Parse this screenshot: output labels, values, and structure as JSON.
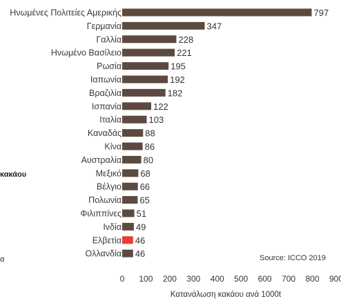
{
  "chart_data": {
    "type": "bar",
    "orientation": "horizontal",
    "categories": [
      "Ηνωμένες Πολιτείες Αμερικής",
      "Γερμανία",
      "Γαλλία",
      "Ηνωμένο Βασίλειο",
      "Ρωσία",
      "Ιαπωνία",
      "Βραζιλία",
      "Ισπανία",
      "Ιταλία",
      "Καναδάς",
      "Κίνα",
      "Αυστραλία",
      "Μεξικό",
      "Βέλγιο",
      "Πολωνία",
      "Φιλιππίνες",
      "Ινδία",
      "Ελβετία",
      "Ολλανδία"
    ],
    "values": [
      797,
      347,
      228,
      221,
      195,
      192,
      182,
      122,
      103,
      88,
      86,
      80,
      68,
      66,
      65,
      51,
      49,
      46,
      46
    ],
    "value_labels": [
      "797",
      "347",
      "228",
      "221",
      "195",
      "192",
      "182",
      "122",
      "103",
      "88",
      "86",
      "80",
      "68",
      "66",
      "65",
      "51",
      "49",
      "46",
      "46"
    ],
    "highlight_category": "Ελβετία",
    "xlabel": "Κατανάλωση κακάου ανά 1000t",
    "xticks": [
      "0",
      "100",
      "200",
      "300",
      "400",
      "500",
      "600",
      "700",
      "800",
      "900"
    ],
    "xlim": [
      0,
      900
    ],
    "source": "Source: ICCO 2019",
    "colors": {
      "bar": "#5c4a40",
      "highlight_bar": "#e8402c",
      "highlight_text": "#e8402c"
    }
  },
  "side_fragments": {
    "left_mid": "κακάου",
    "left_low": "α"
  }
}
